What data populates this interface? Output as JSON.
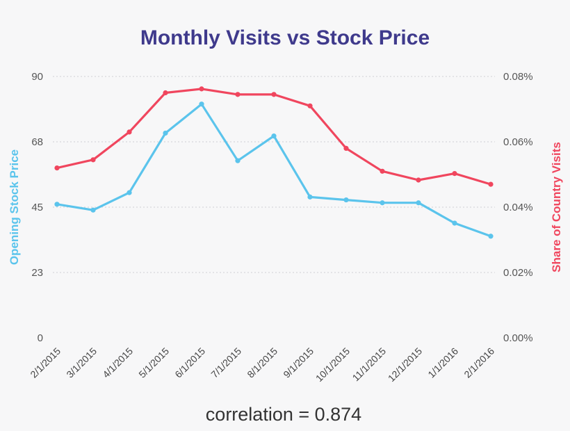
{
  "chart_data": {
    "type": "line",
    "title": "Monthly Visits vs Stock Price",
    "categories": [
      "2/1/2015",
      "3/1/2015",
      "4/1/2015",
      "5/1/2015",
      "6/1/2015",
      "7/1/2015",
      "8/1/2015",
      "9/1/2015",
      "10/1/2015",
      "11/1/2015",
      "12/1/2015",
      "1/1/2016",
      "2/1/2016"
    ],
    "y_left": {
      "label": "Opening Stock Price",
      "ticks": [
        "0",
        "23",
        "45",
        "68",
        "90"
      ],
      "ylim": [
        0,
        90
      ],
      "color": "#5bc4ec"
    },
    "y_right": {
      "label": "Share of Country Visits",
      "ticks": [
        "0.00%",
        "0.02%",
        "0.04%",
        "0.06%",
        "0.08%"
      ],
      "ylim": [
        0,
        0.08
      ],
      "color": "#f0465e"
    },
    "series": [
      {
        "axis": "left",
        "color": "#5bc4ec",
        "values": [
          46.0,
          44.0,
          50.0,
          70.5,
          80.5,
          61.0,
          69.5,
          48.5,
          47.5,
          46.5,
          46.5,
          39.5,
          35.0
        ]
      },
      {
        "axis": "right",
        "color": "#f0465e",
        "values": [
          0.052,
          0.0545,
          0.063,
          0.075,
          0.0762,
          0.0745,
          0.0745,
          0.071,
          0.058,
          0.051,
          0.0483,
          0.0503,
          0.047
        ]
      }
    ],
    "grid": true,
    "annotation": "correlation = 0.874"
  }
}
